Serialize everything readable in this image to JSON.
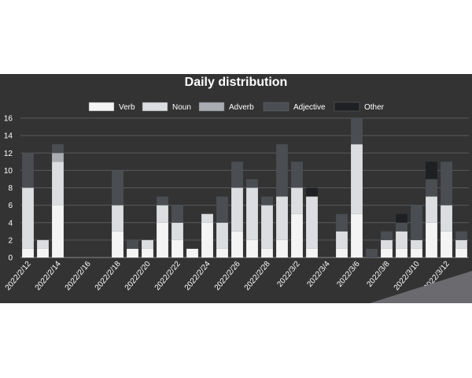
{
  "chart_data": {
    "type": "bar",
    "stacked": true,
    "title": "Daily distribution",
    "xlabel": "",
    "ylabel": "",
    "ylim": [
      0,
      16
    ],
    "yticks": [
      0,
      2,
      4,
      6,
      8,
      10,
      12,
      14,
      16
    ],
    "grid": true,
    "legend_position": "top",
    "categories": [
      "2022/2/12",
      "2022/2/13",
      "2022/2/14",
      "2022/2/15",
      "2022/2/16",
      "2022/2/17",
      "2022/2/18",
      "2022/2/19",
      "2022/2/20",
      "2022/2/21",
      "2022/2/22",
      "2022/2/23",
      "2022/2/24",
      "2022/2/25",
      "2022/2/26",
      "2022/2/27",
      "2022/2/28",
      "2022/3/1",
      "2022/3/2",
      "2022/3/3",
      "2022/3/4",
      "2022/3/5",
      "2022/3/6",
      "2022/3/7",
      "2022/3/8",
      "2022/3/9",
      "2022/3/10",
      "2022/3/11",
      "2022/3/12",
      "2022/3/13"
    ],
    "tick_labels": [
      "2022/2/12",
      "",
      "2022/2/14",
      "",
      "2022/2/16",
      "",
      "2022/2/18",
      "",
      "2022/2/20",
      "",
      "2022/2/22",
      "",
      "2022/2/24",
      "",
      "2022/2/26",
      "",
      "2022/2/28",
      "",
      "2022/3/2",
      "",
      "2022/3/4",
      "",
      "2022/3/6",
      "",
      "2022/3/8",
      "",
      "2022/3/10",
      "",
      "2022/3/12",
      ""
    ],
    "series": [
      {
        "name": "Verb",
        "color": "#f4f4f4",
        "values": [
          1,
          1,
          6,
          0,
          0,
          0,
          3,
          1,
          1,
          4,
          2,
          1,
          4,
          1,
          3,
          2,
          1,
          2,
          5,
          1,
          0,
          1,
          5,
          0,
          1,
          1,
          1,
          4,
          3,
          1
        ]
      },
      {
        "name": "Noun",
        "color": "#dcdde0",
        "values": [
          7,
          1,
          5,
          0,
          0,
          0,
          3,
          0,
          1,
          2,
          2,
          0,
          1,
          3,
          5,
          6,
          5,
          5,
          3,
          6,
          0,
          2,
          8,
          0,
          1,
          2,
          1,
          3,
          3,
          1
        ]
      },
      {
        "name": "Adverb",
        "color": "#a9adb2",
        "values": [
          0,
          0,
          1,
          0,
          0,
          0,
          0,
          0,
          0,
          0,
          0,
          0,
          0,
          0,
          0,
          0,
          0,
          0,
          0,
          0,
          0,
          0,
          0,
          0,
          0,
          0,
          0,
          0,
          0,
          0
        ]
      },
      {
        "name": "Adjective",
        "color": "#4a4d52",
        "values": [
          4,
          0,
          1,
          0,
          0,
          0,
          4,
          1,
          0,
          1,
          2,
          0,
          0,
          3,
          3,
          1,
          1,
          6,
          3,
          0,
          0,
          2,
          3,
          1,
          1,
          1,
          4,
          2,
          5,
          1
        ]
      },
      {
        "name": "Other",
        "color": "#1e2023",
        "values": [
          0,
          0,
          0,
          0,
          0,
          0,
          0,
          0,
          0,
          0,
          0,
          0,
          0,
          0,
          0,
          0,
          0,
          0,
          0,
          1,
          0,
          0,
          0,
          0,
          0,
          1,
          0,
          2,
          0,
          0
        ]
      }
    ]
  }
}
